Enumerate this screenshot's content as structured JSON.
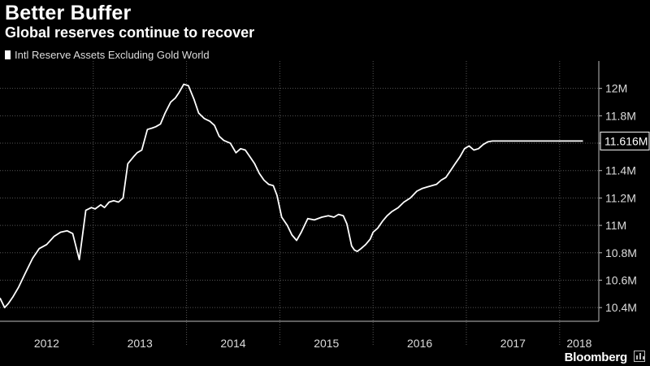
{
  "header": {
    "title": "Better Buffer",
    "subtitle": "Global reserves continue to recover"
  },
  "legend": {
    "label": "Intl Reserve Assets Excluding Gold World",
    "color": "#ffffff"
  },
  "footer": {
    "brand": "Bloomberg"
  },
  "colors": {
    "background": "#000000",
    "line": "#ffffff",
    "grid": "#555555",
    "axis_text": "#dddddd"
  },
  "chart_data": {
    "type": "line",
    "title": "Better Buffer",
    "subtitle": "Global reserves continue to recover",
    "xlabel": "",
    "ylabel": "",
    "grid": true,
    "legend_position": "top-left",
    "xlim": [
      2012.0,
      2018.42
    ],
    "ylim": [
      10.3,
      12.2
    ],
    "y_axis_side": "right",
    "x_ticks": [
      2012,
      2013,
      2014,
      2015,
      2016,
      2017,
      2018
    ],
    "x_tick_labels": [
      "2012",
      "2013",
      "2014",
      "2015",
      "2016",
      "2017",
      "2018"
    ],
    "y_ticks": [
      10.4,
      10.6,
      10.8,
      11.0,
      11.2,
      11.4,
      11.6,
      11.8,
      12.0
    ],
    "y_tick_labels": [
      "10.4M",
      "10.6M",
      "10.8M",
      "11M",
      "11.2M",
      "11.4M",
      "11.6M",
      "11.8M",
      "12M"
    ],
    "last_value_label": "11.616M",
    "series": [
      {
        "name": "Intl Reserve Assets Excluding Gold World",
        "x": [
          2012.0,
          2012.05,
          2012.09,
          2012.14,
          2012.2,
          2012.27,
          2012.35,
          2012.42,
          2012.5,
          2012.58,
          2012.65,
          2012.72,
          2012.78,
          2012.85,
          2012.92,
          2012.98,
          2013.02,
          2013.08,
          2013.12,
          2013.17,
          2013.22,
          2013.27,
          2013.32,
          2013.37,
          2013.43,
          2013.47,
          2013.52,
          2013.58,
          2013.63,
          2013.67,
          2013.72,
          2013.77,
          2013.83,
          2013.88,
          2013.92,
          2013.97,
          2014.02,
          2014.08,
          2014.13,
          2014.19,
          2014.25,
          2014.3,
          2014.35,
          2014.4,
          2014.47,
          2014.53,
          2014.58,
          2014.63,
          2014.68,
          2014.73,
          2014.78,
          2014.83,
          2014.88,
          2014.93,
          2014.97,
          2015.02,
          2015.08,
          2015.13,
          2015.18,
          2015.23,
          2015.3,
          2015.37,
          2015.45,
          2015.52,
          2015.58,
          2015.63,
          2015.68,
          2015.72,
          2015.77,
          2015.8,
          2015.83,
          2015.87,
          2015.92,
          2015.97,
          2016.0,
          2016.05,
          2016.1,
          2016.15,
          2016.2,
          2016.27,
          2016.33,
          2016.4,
          2016.47,
          2016.53,
          2016.58,
          2016.63,
          2016.68,
          2016.73,
          2016.78,
          2016.83,
          2016.88,
          2016.93,
          2016.98,
          2017.03,
          2017.08,
          2017.13,
          2017.18,
          2017.23,
          2017.28,
          2017.33,
          2017.38,
          2017.43,
          2017.5,
          2017.57,
          2017.63,
          2017.7,
          2017.77,
          2017.83,
          2017.9,
          2017.95,
          2018.0,
          2018.05,
          2018.1,
          2018.15,
          2018.2,
          2018.25
        ],
        "values": [
          10.47,
          10.4,
          10.43,
          10.48,
          10.55,
          10.65,
          10.76,
          10.83,
          10.86,
          10.92,
          10.95,
          10.96,
          10.94,
          10.75,
          11.11,
          11.13,
          11.12,
          11.15,
          11.13,
          11.17,
          11.18,
          11.17,
          11.2,
          11.45,
          11.5,
          11.53,
          11.55,
          11.7,
          11.71,
          11.72,
          11.74,
          11.82,
          11.9,
          11.93,
          11.97,
          12.03,
          12.02,
          11.92,
          11.82,
          11.78,
          11.76,
          11.73,
          11.65,
          11.62,
          11.6,
          11.53,
          11.56,
          11.55,
          11.5,
          11.45,
          11.38,
          11.33,
          11.3,
          11.29,
          11.22,
          11.06,
          11.0,
          10.93,
          10.89,
          10.95,
          11.05,
          11.04,
          11.06,
          11.07,
          11.06,
          11.08,
          11.07,
          11.01,
          10.85,
          10.82,
          10.81,
          10.83,
          10.86,
          10.9,
          10.95,
          10.98,
          11.03,
          11.07,
          11.1,
          11.13,
          11.17,
          11.2,
          11.25,
          11.27,
          11.28,
          11.29,
          11.3,
          11.33,
          11.35,
          11.4,
          11.45,
          11.5,
          11.56,
          11.58,
          11.55,
          11.56,
          11.59,
          11.61,
          11.616,
          11.616,
          11.616,
          11.616,
          11.616,
          11.616,
          11.616,
          11.616,
          11.616,
          11.616,
          11.616,
          11.616,
          11.616,
          11.616,
          11.616,
          11.616,
          11.616,
          11.616
        ]
      }
    ]
  }
}
